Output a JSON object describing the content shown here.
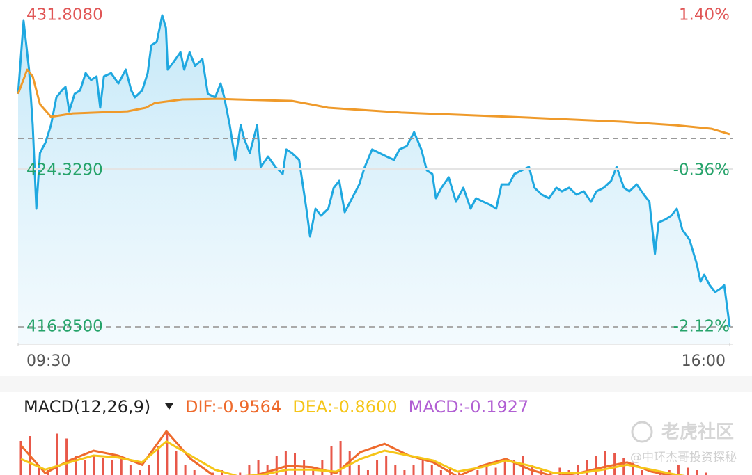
{
  "chart_data": [
    {
      "type": "line",
      "xlim": [
        "09:30",
        "16:00"
      ],
      "xticks": [
        "09:30",
        "16:00"
      ],
      "ylim": [
        416.85,
        431.808
      ],
      "yticks": [
        {
          "value": 431.808,
          "label": "431.8080"
        },
        {
          "value": 424.329,
          "label": "424.3290"
        },
        {
          "value": 416.85,
          "label": "416.8500"
        }
      ],
      "y2lim": [
        -2.12,
        1.4
      ],
      "y2ticks": [
        {
          "value": 1.4,
          "label": "1.40%"
        },
        {
          "value": -0.36,
          "label": "-0.36%"
        },
        {
          "value": -2.12,
          "label": "-2.12%"
        }
      ],
      "reference_y2": 0,
      "up_color": "#e05555",
      "down_color": "#25a36a",
      "series": [
        {
          "color": "#1fa8e0",
          "area": true,
          "x": [
            "09:30",
            "09:33",
            "09:36",
            "09:38",
            "09:40",
            "09:42",
            "09:45",
            "09:48",
            "09:51",
            "09:54",
            "09:56",
            "09:58",
            "10:01",
            "10:04",
            "10:07",
            "10:10",
            "10:13",
            "10:15",
            "10:17",
            "10:21",
            "10:25",
            "10:29",
            "10:32",
            "10:34",
            "10:38",
            "10:41",
            "10:43",
            "10:46",
            "10:49",
            "10:51",
            "10:52",
            "10:55",
            "10:59",
            "11:01",
            "11:04",
            "11:07",
            "11:11",
            "11:14",
            "11:18",
            "11:21",
            "11:23",
            "11:26",
            "11:29",
            "11:32",
            "11:34",
            "11:37",
            "11:41",
            "11:43",
            "11:47",
            "11:51",
            "11:55",
            "11:57",
            "12:00",
            "12:04",
            "12:08",
            "12:10",
            "12:13",
            "12:16",
            "12:20",
            "12:23",
            "12:26",
            "12:29",
            "12:33",
            "12:37",
            "12:40",
            "12:44",
            "12:48",
            "12:52",
            "12:56",
            "12:59",
            "13:03",
            "13:07",
            "13:11",
            "13:14",
            "13:17",
            "13:19",
            "13:22",
            "13:26",
            "13:30",
            "13:34",
            "13:38",
            "13:41",
            "13:45",
            "13:49",
            "13:52",
            "13:55",
            "13:59",
            "14:02",
            "14:06",
            "14:10",
            "14:13",
            "14:17",
            "14:21",
            "14:25",
            "14:28",
            "14:32",
            "14:36",
            "14:40",
            "14:44",
            "14:47",
            "14:51",
            "14:55",
            "14:58",
            "15:02",
            "15:05",
            "15:09",
            "15:13",
            "15:16",
            "15:19",
            "15:21",
            "15:25",
            "15:28",
            "15:31",
            "15:34",
            "15:38",
            "15:42",
            "15:44",
            "15:46",
            "15:49",
            "15:52",
            "15:55",
            "15:57",
            "16:00"
          ],
          "values": [
            427.99,
            431.48,
            429.15,
            426.49,
            422.5,
            425.16,
            425.66,
            426.49,
            427.82,
            428.15,
            428.32,
            427.15,
            427.99,
            428.15,
            428.98,
            428.65,
            428.82,
            427.32,
            428.82,
            428.98,
            428.48,
            429.15,
            428.15,
            427.82,
            428.15,
            428.98,
            430.31,
            430.48,
            431.74,
            431.14,
            429.15,
            429.48,
            429.98,
            429.15,
            429.98,
            429.32,
            429.65,
            427.99,
            427.82,
            428.48,
            427.82,
            426.49,
            424.83,
            426.49,
            425.82,
            425.16,
            426.49,
            424.5,
            424.99,
            424.5,
            424.16,
            425.33,
            425.16,
            424.83,
            422.5,
            421.17,
            422.5,
            422.17,
            422.5,
            423.5,
            423.83,
            422.33,
            423.0,
            423.66,
            424.5,
            425.33,
            425.16,
            424.99,
            424.83,
            425.33,
            425.49,
            426.16,
            425.33,
            424.33,
            424.16,
            423.0,
            423.5,
            424.0,
            422.83,
            423.5,
            422.5,
            423.0,
            422.83,
            422.67,
            422.5,
            423.66,
            423.66,
            424.16,
            424.33,
            424.5,
            423.5,
            423.17,
            423.0,
            423.5,
            423.33,
            423.5,
            423.17,
            423.33,
            422.83,
            423.33,
            423.5,
            423.83,
            424.5,
            423.5,
            423.33,
            423.66,
            423.17,
            422.83,
            420.34,
            421.84,
            422.0,
            422.17,
            422.5,
            421.5,
            421.01,
            419.84,
            419.01,
            419.34,
            418.84,
            418.51,
            418.68,
            418.84,
            416.85
          ]
        },
        {
          "color": "#ef9a2a",
          "x": [
            "09:30",
            "09:35",
            "09:38",
            "09:42",
            "09:48",
            "10:00",
            "10:30",
            "10:40",
            "10:45",
            "11:00",
            "11:20",
            "11:30",
            "12:00",
            "12:10",
            "12:20",
            "13:00",
            "14:00",
            "15:00",
            "15:30",
            "15:50",
            "16:00"
          ],
          "values": [
            427.99,
            429.15,
            428.82,
            427.49,
            426.89,
            427.05,
            427.15,
            427.32,
            427.55,
            427.72,
            427.75,
            427.72,
            427.65,
            427.49,
            427.32,
            427.09,
            426.89,
            426.66,
            426.49,
            426.32,
            426.06
          ]
        }
      ]
    },
    {
      "type": "bar",
      "title": "MACD(12,26,9)",
      "bar_name": "MACD:-0.1927",
      "bar_legend_color": "#b15fd3",
      "color": "#e8584a",
      "ylim": [
        -0.1,
        1.1
      ],
      "values": [
        0.8,
        0.9,
        0.3,
        0.2,
        0.95,
        0.85,
        0.5,
        0.4,
        0.5,
        0.45,
        0.4,
        0.5,
        0.3,
        0.2,
        0.3,
        0.7,
        1.0,
        0.6,
        0.3,
        0.2,
        0.1,
        0.15,
        0.2,
        0.1,
        0.15,
        0.3,
        0.4,
        0.3,
        0.5,
        0.6,
        0.55,
        0.4,
        0.2,
        0.4,
        0.7,
        0.8,
        0.6,
        0.3,
        0.2,
        0.4,
        0.5,
        0.3,
        0.2,
        0.3,
        0.4,
        0.3,
        0.2,
        0.25,
        0.15,
        0.1,
        0.2,
        0.3,
        0.25,
        0.45,
        0.4,
        0.5,
        0.3,
        0.2,
        0.15,
        0.25,
        0.2,
        0.3,
        0.4,
        0.5,
        0.6,
        0.55,
        0.45,
        0.35,
        0.2,
        0.1,
        0.15,
        0.2,
        0.3,
        0.25,
        0.2,
        0.15,
        0.1,
        0.1
      ],
      "series": [
        {
          "name": "DIF:-0.9564",
          "color": "#ee6a2c",
          "values": [
            0.71,
            0.14,
            0.4,
            0.6,
            0.5,
            0.31,
            1.0,
            0.43,
            0.07,
            0,
            0.14,
            0.29,
            0.26,
            0.14,
            0.57,
            0.74,
            0.5,
            0.36,
            0.07,
            0.29,
            0.43,
            0.21,
            0.07,
            0.14,
            0.26,
            0.36,
            0.17,
            0.07,
            0,
            -0.07
          ]
        },
        {
          "name": "DEA:-0.8600",
          "color": "#f5c518",
          "values": [
            0.43,
            0.21,
            0.36,
            0.5,
            0.46,
            0.36,
            0.79,
            0.5,
            0.21,
            0.07,
            0.11,
            0.21,
            0.21,
            0.17,
            0.43,
            0.6,
            0.5,
            0.4,
            0.17,
            0.26,
            0.4,
            0.29,
            0.14,
            0.14,
            0.21,
            0.31,
            0.21,
            0.11,
            0.03,
            -0.03
          ]
        }
      ]
    }
  ],
  "watermark": {
    "brand": "老虎社区",
    "author": "@中环杰哥投资探秘"
  }
}
